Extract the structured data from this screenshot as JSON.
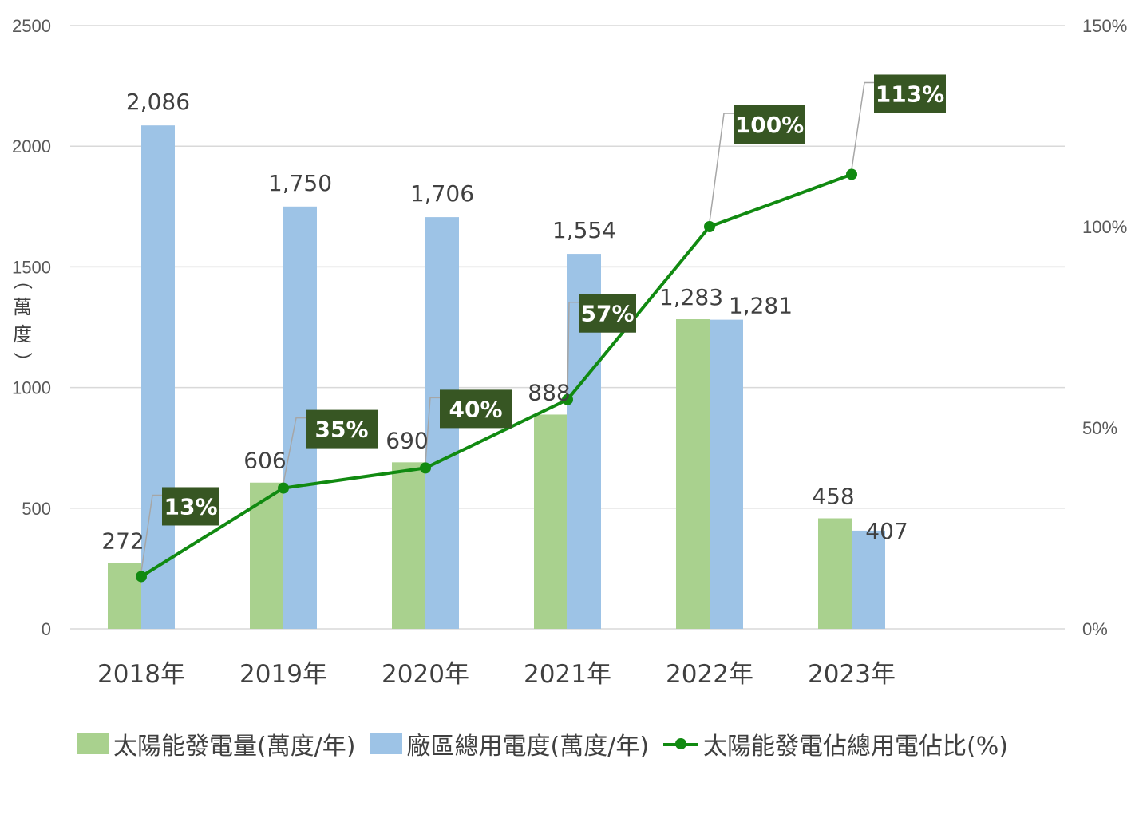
{
  "chart_data": {
    "type": "bar",
    "categories": [
      "2018年",
      "2019年",
      "2020年",
      "2021年",
      "2022年",
      "2023年"
    ],
    "series": [
      {
        "name": "太陽能發電量(萬度/年)",
        "type": "bar",
        "axis": "left",
        "color": "#a9d18e",
        "values": [
          272,
          606,
          690,
          888,
          1283,
          458
        ],
        "labels": [
          "272",
          "606",
          "690",
          "888",
          "1,283",
          "458"
        ]
      },
      {
        "name": "廠區總用電度(萬度/年)",
        "type": "bar",
        "axis": "left",
        "color": "#9dc3e6",
        "values": [
          2086,
          1750,
          1706,
          1554,
          1281,
          407
        ],
        "labels": [
          "2,086",
          "1,750",
          "1,706",
          "1,554",
          "1,281",
          "407"
        ]
      },
      {
        "name": "太陽能發電佔總用電佔比(%)",
        "type": "line",
        "axis": "right",
        "color": "#118a11",
        "label_bg": "#375623",
        "values": [
          13,
          35,
          40,
          57,
          100,
          113
        ],
        "labels": [
          "13%",
          "35%",
          "40%",
          "57%",
          "100%",
          "113%"
        ]
      }
    ],
    "ylabel": "（萬度）",
    "ylim": [
      0,
      2500
    ],
    "yticks": [
      "0",
      "500",
      "1000",
      "1500",
      "2000",
      "2500"
    ],
    "y2lim": [
      0,
      150
    ],
    "y2ticks": [
      "0%",
      "50%",
      "100%",
      "150%"
    ],
    "grid": true,
    "legend_position": "bottom"
  }
}
